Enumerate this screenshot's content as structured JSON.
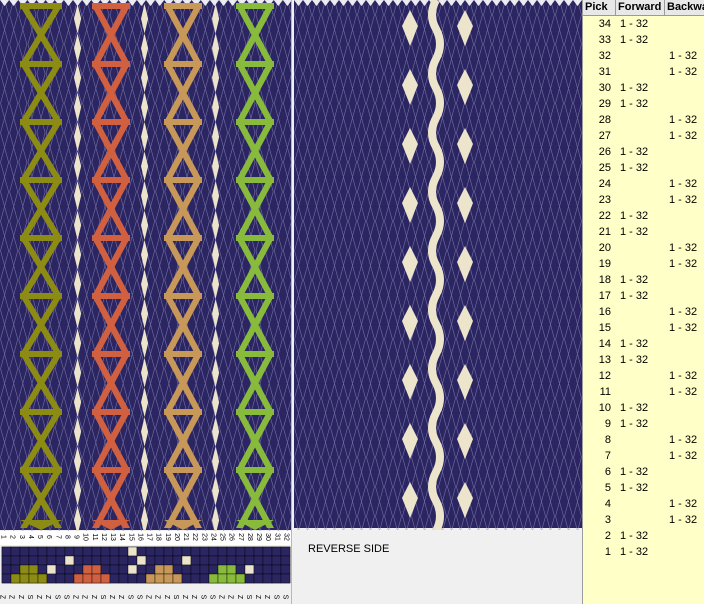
{
  "colors": {
    "background": "#2b2661",
    "thread_line": "#8a86b8",
    "olive": "#8c8c14",
    "cream": "#ede4cc",
    "rust": "#d06040",
    "tan": "#c89858",
    "lime": "#88bb3c",
    "table_bg": "#ffffc8"
  },
  "front_panel": {
    "card_numbers": [
      "1",
      "2",
      "3",
      "4",
      "5",
      "6",
      "7",
      "8",
      "9",
      "10",
      "11",
      "12",
      "13",
      "14",
      "15",
      "16",
      "17",
      "18",
      "19",
      "20",
      "21",
      "22",
      "23",
      "24",
      "25",
      "26",
      "27",
      "28",
      "29",
      "30",
      "31",
      "32"
    ],
    "threading": [
      "Z",
      "Z",
      "Z",
      "S",
      "Z",
      "Z",
      "S",
      "S",
      "Z",
      "Z",
      "Z",
      "S",
      "Z",
      "Z",
      "S",
      "S",
      "Z",
      "Z",
      "Z",
      "S",
      "Z",
      "Z",
      "S",
      "S",
      "Z",
      "Z",
      "Z",
      "S",
      "Z",
      "Z",
      "S",
      "S"
    ],
    "motifs": [
      {
        "color": "olive",
        "kind": "chain"
      },
      {
        "color": "cream",
        "kind": "stripe"
      },
      {
        "color": "rust",
        "kind": "chain"
      },
      {
        "color": "cream",
        "kind": "stripe"
      },
      {
        "color": "tan",
        "kind": "chain"
      },
      {
        "color": "cream",
        "kind": "stripe"
      },
      {
        "color": "lime",
        "kind": "chain"
      }
    ]
  },
  "back_panel": {
    "label": "REVERSE SIDE",
    "motifs": [
      {
        "color": "cream",
        "kind": "dots"
      },
      {
        "color": "cream",
        "kind": "wave"
      },
      {
        "color": "cream",
        "kind": "dots"
      }
    ]
  },
  "pick_table": {
    "headers": [
      "Pick",
      "Forward",
      "Backward"
    ],
    "rows": [
      {
        "pick": "34",
        "forward": "1 - 32",
        "backward": ""
      },
      {
        "pick": "33",
        "forward": "1 - 32",
        "backward": ""
      },
      {
        "pick": "32",
        "forward": "",
        "backward": "1 - 32"
      },
      {
        "pick": "31",
        "forward": "",
        "backward": "1 - 32"
      },
      {
        "pick": "30",
        "forward": "1 - 32",
        "backward": ""
      },
      {
        "pick": "29",
        "forward": "1 - 32",
        "backward": ""
      },
      {
        "pick": "28",
        "forward": "",
        "backward": "1 - 32"
      },
      {
        "pick": "27",
        "forward": "",
        "backward": "1 - 32"
      },
      {
        "pick": "26",
        "forward": "1 - 32",
        "backward": ""
      },
      {
        "pick": "25",
        "forward": "1 - 32",
        "backward": ""
      },
      {
        "pick": "24",
        "forward": "",
        "backward": "1 - 32"
      },
      {
        "pick": "23",
        "forward": "",
        "backward": "1 - 32"
      },
      {
        "pick": "22",
        "forward": "1 - 32",
        "backward": ""
      },
      {
        "pick": "21",
        "forward": "1 - 32",
        "backward": ""
      },
      {
        "pick": "20",
        "forward": "",
        "backward": "1 - 32"
      },
      {
        "pick": "19",
        "forward": "",
        "backward": "1 - 32"
      },
      {
        "pick": "18",
        "forward": "1 - 32",
        "backward": ""
      },
      {
        "pick": "17",
        "forward": "1 - 32",
        "backward": ""
      },
      {
        "pick": "16",
        "forward": "",
        "backward": "1 - 32"
      },
      {
        "pick": "15",
        "forward": "",
        "backward": "1 - 32"
      },
      {
        "pick": "14",
        "forward": "1 - 32",
        "backward": ""
      },
      {
        "pick": "13",
        "forward": "1 - 32",
        "backward": ""
      },
      {
        "pick": "12",
        "forward": "",
        "backward": "1 - 32"
      },
      {
        "pick": "11",
        "forward": "",
        "backward": "1 - 32"
      },
      {
        "pick": "10",
        "forward": "1 - 32",
        "backward": ""
      },
      {
        "pick": "9",
        "forward": "1 - 32",
        "backward": ""
      },
      {
        "pick": "8",
        "forward": "",
        "backward": "1 - 32"
      },
      {
        "pick": "7",
        "forward": "",
        "backward": "1 - 32"
      },
      {
        "pick": "6",
        "forward": "1 - 32",
        "backward": ""
      },
      {
        "pick": "5",
        "forward": "1 - 32",
        "backward": ""
      },
      {
        "pick": "4",
        "forward": "",
        "backward": "1 - 32"
      },
      {
        "pick": "3",
        "forward": "",
        "backward": "1 - 32"
      },
      {
        "pick": "2",
        "forward": "1 - 32",
        "backward": ""
      },
      {
        "pick": "1",
        "forward": "1 - 32",
        "backward": ""
      }
    ]
  }
}
